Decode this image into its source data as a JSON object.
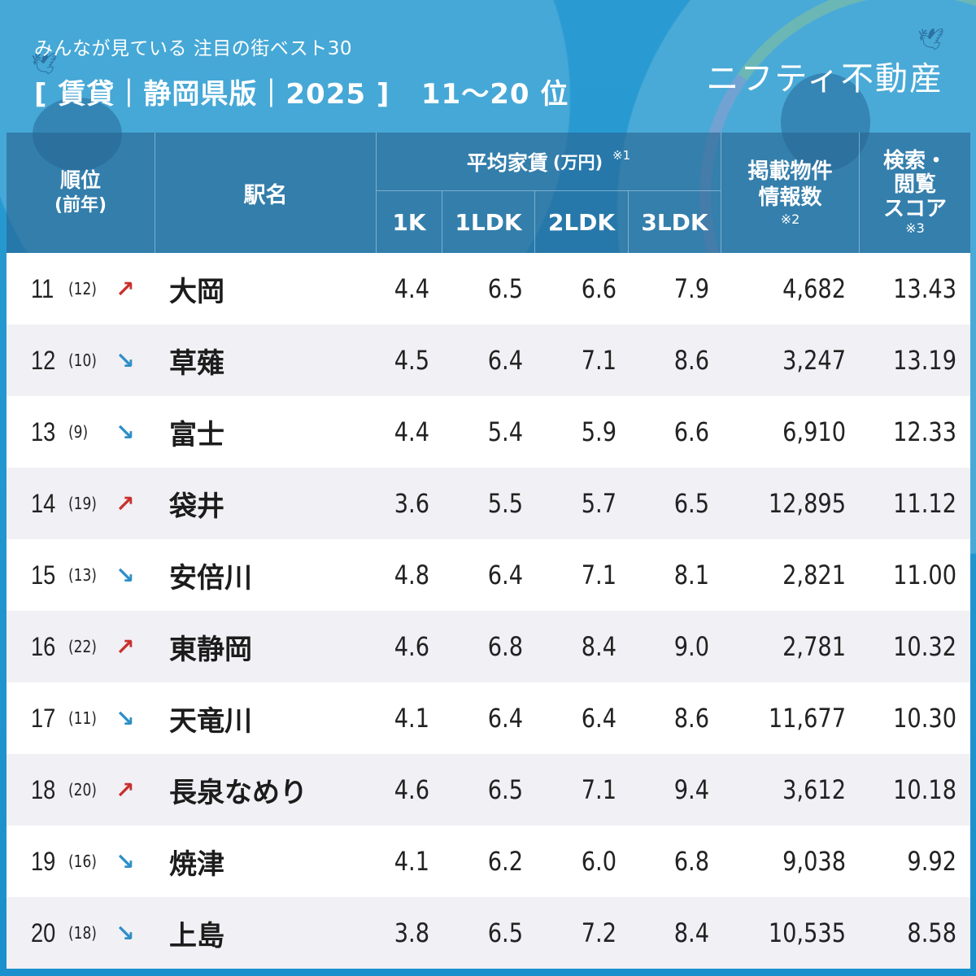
{
  "header": {
    "subtitle": "みんなが見ている 注目の街ベスト30",
    "title": "[ 賃貸｜静岡県版｜2025 ]   11〜20 位",
    "logo": "ニフティ不動産"
  },
  "colors": {
    "background": "#1e94cf",
    "header_overlay": "#28648f",
    "row_alt": "#f1f0f4",
    "arrow_up": "#c8302c",
    "arrow_down": "#2e8fc7"
  },
  "table": {
    "headers": {
      "rank": "順位",
      "rank_prev": "(前年)",
      "station": "駅名",
      "rent": "平均家賃",
      "rent_unit": "(万円)",
      "rent_note": "※1",
      "k1": "1K",
      "ldk1": "1LDK",
      "ldk2": "2LDK",
      "ldk3": "3LDK",
      "listings_line1": "掲載物件",
      "listings_line2": "情報数",
      "listings_note": "※2",
      "score_line1": "検索・",
      "score_line2": "閲覧",
      "score_line3": "スコア",
      "score_note": "※3"
    },
    "rows": [
      {
        "rank": "11",
        "prev": "(12)",
        "trend": "up",
        "arrow": "↗",
        "station": "大岡",
        "k1": "4.4",
        "ldk1": "6.5",
        "ldk2": "6.6",
        "ldk3": "7.9",
        "listings": "4,682",
        "score": "13.43"
      },
      {
        "rank": "12",
        "prev": "(10)",
        "trend": "down",
        "arrow": "↘",
        "station": "草薙",
        "k1": "4.5",
        "ldk1": "6.4",
        "ldk2": "7.1",
        "ldk3": "8.6",
        "listings": "3,247",
        "score": "13.19"
      },
      {
        "rank": "13",
        "prev": "(9)",
        "trend": "down",
        "arrow": "↘",
        "station": "富士",
        "k1": "4.4",
        "ldk1": "5.4",
        "ldk2": "5.9",
        "ldk3": "6.6",
        "listings": "6,910",
        "score": "12.33"
      },
      {
        "rank": "14",
        "prev": "(19)",
        "trend": "up",
        "arrow": "↗",
        "station": "袋井",
        "k1": "3.6",
        "ldk1": "5.5",
        "ldk2": "5.7",
        "ldk3": "6.5",
        "listings": "12,895",
        "score": "11.12"
      },
      {
        "rank": "15",
        "prev": "(13)",
        "trend": "down",
        "arrow": "↘",
        "station": "安倍川",
        "k1": "4.8",
        "ldk1": "6.4",
        "ldk2": "7.1",
        "ldk3": "8.1",
        "listings": "2,821",
        "score": "11.00"
      },
      {
        "rank": "16",
        "prev": "(22)",
        "trend": "up",
        "arrow": "↗",
        "station": "東静岡",
        "k1": "4.6",
        "ldk1": "6.8",
        "ldk2": "8.4",
        "ldk3": "9.0",
        "listings": "2,781",
        "score": "10.32"
      },
      {
        "rank": "17",
        "prev": "(11)",
        "trend": "down",
        "arrow": "↘",
        "station": "天竜川",
        "k1": "4.1",
        "ldk1": "6.4",
        "ldk2": "6.4",
        "ldk3": "8.6",
        "listings": "11,677",
        "score": "10.30"
      },
      {
        "rank": "18",
        "prev": "(20)",
        "trend": "up",
        "arrow": "↗",
        "station": "長泉なめり",
        "k1": "4.6",
        "ldk1": "6.5",
        "ldk2": "7.1",
        "ldk3": "9.4",
        "listings": "3,612",
        "score": "10.18"
      },
      {
        "rank": "19",
        "prev": "(16)",
        "trend": "down",
        "arrow": "↘",
        "station": "焼津",
        "k1": "4.1",
        "ldk1": "6.2",
        "ldk2": "6.0",
        "ldk3": "6.8",
        "listings": "9,038",
        "score": "9.92"
      },
      {
        "rank": "20",
        "prev": "(18)",
        "trend": "down",
        "arrow": "↘",
        "station": "上島",
        "k1": "3.8",
        "ldk1": "6.5",
        "ldk2": "7.2",
        "ldk3": "8.4",
        "listings": "10,535",
        "score": "8.58"
      }
    ]
  }
}
